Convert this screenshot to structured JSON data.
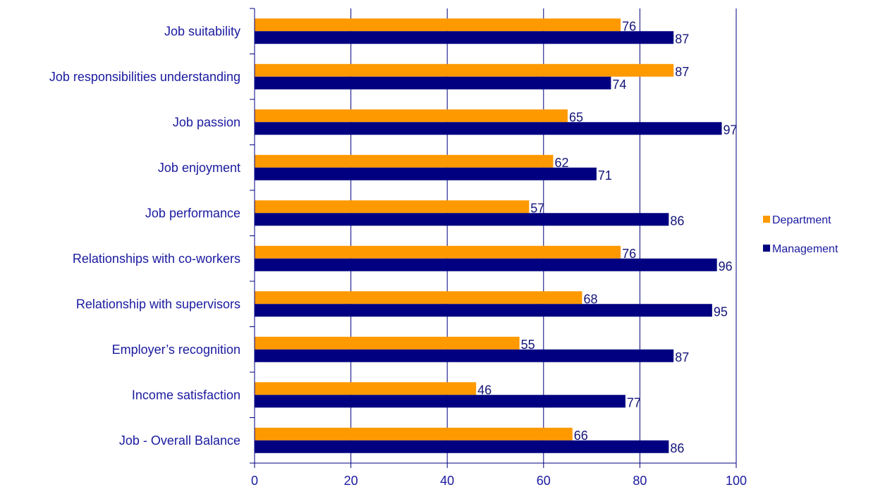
{
  "chart_data": {
    "type": "bar",
    "orientation": "horizontal",
    "categories": [
      "Job suitability",
      "Job responsibilities understanding",
      "Job passion",
      "Job enjoyment",
      "Job performance",
      "Relationships with co-workers",
      "Relationship with supervisors",
      "Employer’s recognition",
      "Income satisfaction",
      "Job - Overall Balance"
    ],
    "series": [
      {
        "name": "Department",
        "color": "#ff9900",
        "values": [
          76,
          87,
          65,
          62,
          57,
          76,
          68,
          55,
          46,
          66
        ]
      },
      {
        "name": "Management",
        "color": "#000080",
        "values": [
          87,
          74,
          97,
          71,
          86,
          96,
          95,
          87,
          77,
          86
        ]
      }
    ],
    "xlim": [
      0,
      100
    ],
    "xticks": [
      0,
      20,
      40,
      60,
      80,
      100
    ],
    "xlabel": "",
    "ylabel": "",
    "title": "",
    "grid": "vertical",
    "legend": "right",
    "axis_color": "#000080"
  }
}
